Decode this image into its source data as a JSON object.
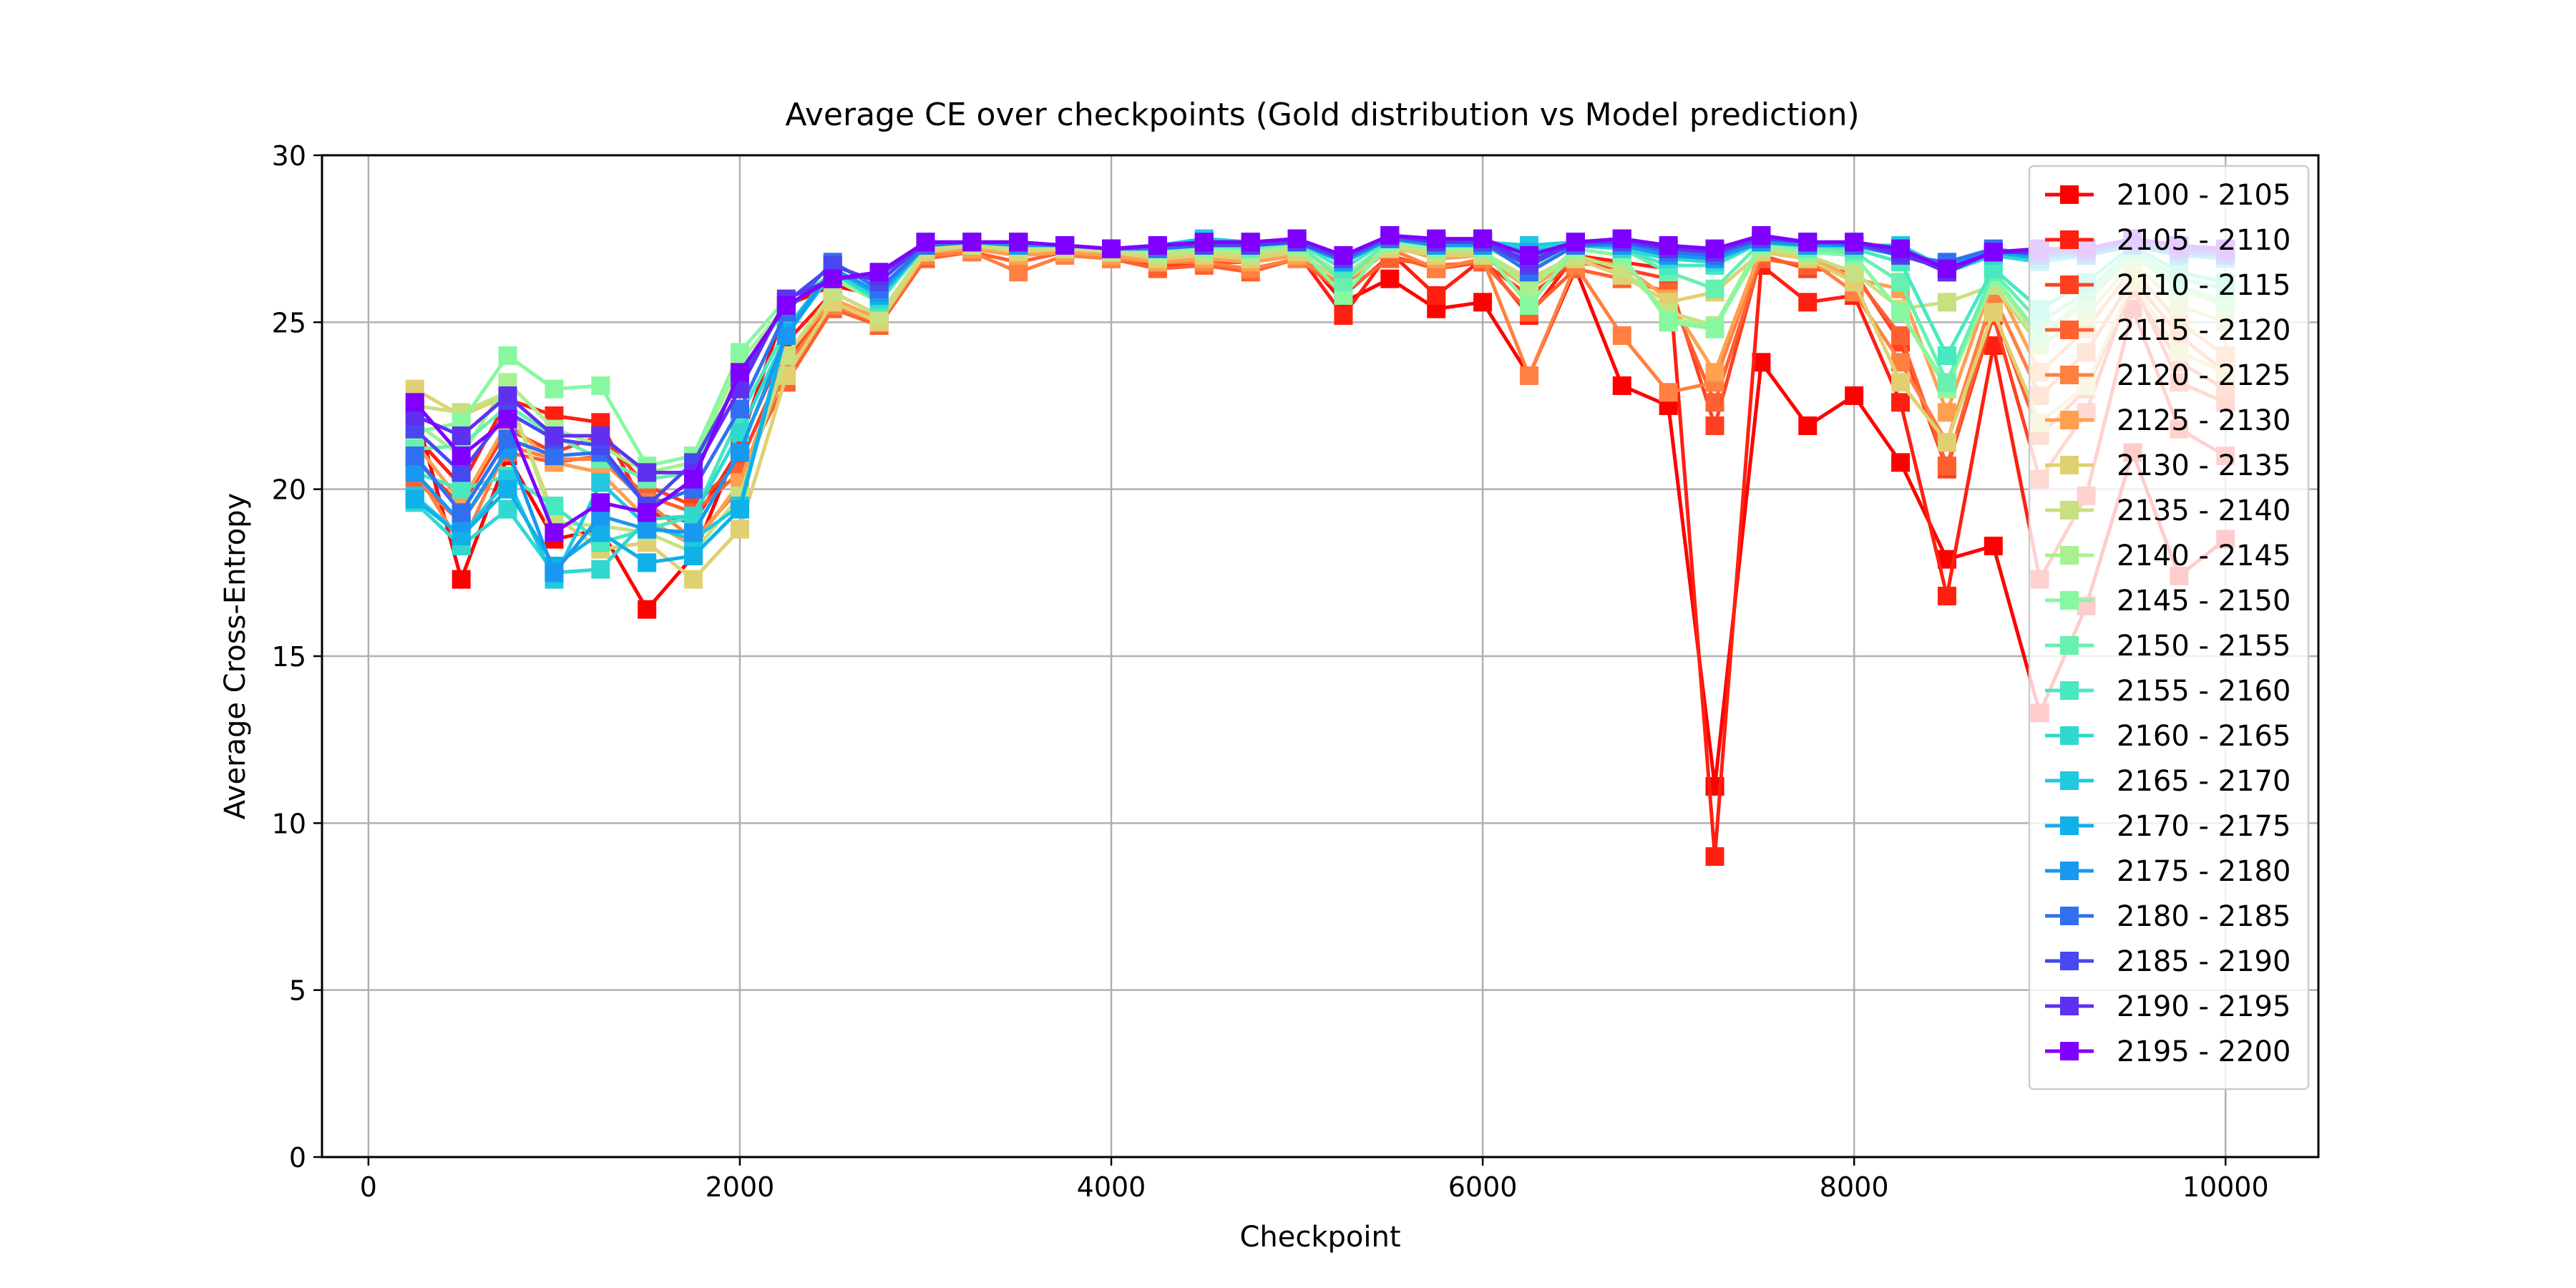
{
  "chart_data": {
    "type": "line",
    "title": "Average CE over checkpoints (Gold distribution vs Model prediction)",
    "xlabel": "Checkpoint",
    "ylabel": "Average Cross-Entropy",
    "xlim": [
      -250,
      10500
    ],
    "ylim": [
      0,
      30
    ],
    "xticks": [
      0,
      2000,
      4000,
      6000,
      8000,
      10000
    ],
    "yticks": [
      0,
      5,
      10,
      15,
      20,
      25,
      30
    ],
    "grid": true,
    "legend_position": "right",
    "marker": "square",
    "x": [
      250,
      500,
      750,
      1000,
      1250,
      1500,
      1750,
      2000,
      2250,
      2500,
      2750,
      3000,
      3250,
      3500,
      3750,
      4000,
      4250,
      4500,
      4750,
      5000,
      5250,
      5500,
      5750,
      6000,
      6250,
      6500,
      6750,
      7000,
      7250,
      7500,
      7750,
      8000,
      8250,
      8500,
      8750,
      9000,
      9250,
      9500,
      9750,
      10000
    ],
    "series": [
      {
        "name": "2100 - 2105",
        "color": "#ff0000",
        "values": [
          22.4,
          17.3,
          21.0,
          18.5,
          18.8,
          16.4,
          18.0,
          21.4,
          25.5,
          26.1,
          25.8,
          27.2,
          27.3,
          27.2,
          27.1,
          27.0,
          27.0,
          27.1,
          27.0,
          27.2,
          25.6,
          26.3,
          25.4,
          25.6,
          23.4,
          26.6,
          23.1,
          22.5,
          11.1,
          23.8,
          21.9,
          22.8,
          20.8,
          17.9,
          18.3,
          13.3,
          16.5,
          21.1,
          17.4,
          18.5
        ]
      },
      {
        "name": "2105 - 2110",
        "color": "#ff1f10",
        "values": [
          21.6,
          20.1,
          22.7,
          22.2,
          22.0,
          19.3,
          19.0,
          21.2,
          24.4,
          25.9,
          25.2,
          27.1,
          27.2,
          27.0,
          27.1,
          26.9,
          26.9,
          27.0,
          26.9,
          27.1,
          25.2,
          27.1,
          25.8,
          26.9,
          25.2,
          27.0,
          26.8,
          26.6,
          9.0,
          26.7,
          25.6,
          25.8,
          22.6,
          16.8,
          24.3,
          17.3,
          19.8,
          25.4,
          21.8,
          21.0
        ]
      },
      {
        "name": "2110 - 2115",
        "color": "#ff4020",
        "values": [
          20.9,
          19.5,
          21.8,
          21.1,
          21.6,
          20.1,
          19.5,
          20.8,
          23.9,
          25.6,
          25.0,
          27.0,
          27.2,
          27.0,
          27.2,
          27.0,
          26.7,
          26.8,
          26.8,
          27.0,
          25.8,
          27.0,
          26.6,
          26.8,
          25.8,
          26.8,
          26.6,
          26.3,
          21.9,
          27.0,
          26.6,
          26.5,
          24.4,
          20.6,
          25.2,
          20.3,
          22.3,
          26.2,
          23.2,
          22.6
        ]
      },
      {
        "name": "2115 - 2120",
        "color": "#ff6030",
        "values": [
          20.3,
          19.0,
          21.1,
          20.8,
          21.0,
          19.8,
          19.3,
          20.5,
          23.2,
          25.4,
          24.9,
          26.9,
          27.1,
          26.8,
          27.1,
          26.9,
          26.6,
          26.7,
          26.5,
          26.9,
          25.9,
          26.9,
          26.7,
          26.8,
          25.3,
          26.6,
          26.3,
          25.9,
          22.6,
          26.9,
          26.7,
          26.4,
          24.6,
          20.7,
          25.4,
          21.6,
          23.0,
          26.0,
          23.8,
          23.0
        ]
      },
      {
        "name": "2120 - 2125",
        "color": "#ff8040",
        "values": [
          20.6,
          18.3,
          21.3,
          20.9,
          20.9,
          19.6,
          18.5,
          20.0,
          23.7,
          25.5,
          25.0,
          27.0,
          27.1,
          26.5,
          27.0,
          26.9,
          26.8,
          26.8,
          26.6,
          26.9,
          26.1,
          27.2,
          26.6,
          26.9,
          23.4,
          26.7,
          24.6,
          22.9,
          23.2,
          27.1,
          26.9,
          25.9,
          23.8,
          21.4,
          25.8,
          22.8,
          24.1,
          26.3,
          24.6,
          23.5
        ]
      },
      {
        "name": "2125 - 2130",
        "color": "#ffa050",
        "values": [
          21.4,
          19.6,
          22.0,
          20.8,
          20.5,
          19.1,
          18.3,
          20.2,
          24.0,
          25.7,
          25.1,
          27.1,
          27.2,
          27.0,
          27.1,
          27.0,
          26.8,
          26.9,
          26.8,
          27.0,
          26.3,
          27.3,
          26.9,
          27.0,
          26.0,
          26.9,
          26.7,
          25.7,
          23.5,
          27.2,
          27.0,
          26.3,
          26.0,
          22.3,
          26.3,
          23.5,
          24.8,
          26.6,
          25.0,
          24.0
        ]
      },
      {
        "name": "2130 - 2135",
        "color": "#e0d070",
        "values": [
          23.0,
          22.2,
          22.8,
          19.2,
          18.2,
          18.4,
          17.3,
          18.8,
          23.4,
          25.6,
          25.0,
          27.1,
          27.3,
          27.1,
          27.2,
          27.1,
          26.9,
          27.0,
          26.9,
          27.1,
          26.2,
          27.2,
          27.0,
          27.0,
          26.2,
          26.9,
          26.4,
          25.6,
          25.9,
          27.1,
          26.9,
          26.2,
          23.2,
          21.4,
          25.3,
          22.0,
          23.1,
          26.2,
          24.1,
          23.5
        ]
      },
      {
        "name": "2135 - 2140",
        "color": "#c8e080",
        "values": [
          22.5,
          22.3,
          22.9,
          19.0,
          18.9,
          18.7,
          18.1,
          19.8,
          24.0,
          25.9,
          25.2,
          27.2,
          27.3,
          27.2,
          27.2,
          27.1,
          27.0,
          27.1,
          27.0,
          27.2,
          26.4,
          27.3,
          27.1,
          27.1,
          26.3,
          27.0,
          26.6,
          25.3,
          24.9,
          27.2,
          27.0,
          26.5,
          25.4,
          25.6,
          26.1,
          24.3,
          25.2,
          26.8,
          25.5,
          25.0
        ]
      },
      {
        "name": "2140 - 2145",
        "color": "#a8f090",
        "values": [
          22.0,
          21.0,
          23.2,
          21.8,
          21.3,
          20.5,
          20.8,
          23.8,
          25.5,
          26.3,
          25.6,
          27.3,
          27.4,
          27.3,
          27.3,
          27.2,
          27.1,
          27.2,
          27.1,
          27.3,
          26.4,
          27.4,
          27.2,
          27.2,
          26.0,
          27.2,
          27.0,
          25.1,
          24.9,
          27.4,
          27.2,
          27.0,
          25.3,
          23.0,
          26.3,
          24.5,
          25.6,
          27.0,
          26.0,
          25.5
        ]
      },
      {
        "name": "2145 - 2150",
        "color": "#88f8a0",
        "values": [
          21.7,
          22.0,
          24.0,
          23.0,
          23.1,
          20.7,
          21.0,
          24.1,
          25.7,
          26.4,
          25.6,
          27.3,
          27.4,
          27.3,
          27.3,
          27.2,
          27.2,
          27.2,
          27.2,
          27.3,
          25.8,
          27.4,
          27.2,
          27.2,
          25.5,
          27.2,
          27.0,
          25.0,
          24.8,
          27.3,
          27.1,
          27.0,
          25.3,
          23.1,
          26.4,
          24.6,
          25.7,
          27.1,
          26.1,
          25.6
        ]
      },
      {
        "name": "2150 - 2155",
        "color": "#68f0b0",
        "values": [
          21.2,
          21.3,
          22.5,
          21.6,
          20.9,
          20.3,
          20.5,
          23.5,
          25.4,
          26.5,
          25.7,
          27.3,
          27.4,
          27.3,
          27.3,
          27.2,
          27.2,
          27.3,
          27.2,
          27.4,
          26.2,
          27.5,
          27.3,
          27.3,
          26.6,
          27.3,
          27.2,
          26.5,
          26.0,
          27.4,
          27.2,
          27.1,
          26.2,
          23.2,
          26.5,
          25.0,
          25.9,
          27.2,
          26.3,
          26.0
        ]
      },
      {
        "name": "2155 - 2160",
        "color": "#48e8c0",
        "values": [
          20.5,
          20.0,
          20.4,
          19.5,
          18.4,
          18.8,
          19.2,
          22.2,
          24.8,
          26.5,
          25.6,
          27.3,
          27.4,
          27.3,
          27.3,
          27.2,
          27.2,
          27.4,
          27.3,
          27.4,
          26.6,
          27.5,
          27.3,
          27.3,
          27.0,
          27.3,
          27.2,
          26.7,
          26.7,
          27.4,
          27.3,
          27.2,
          26.8,
          24.0,
          26.6,
          25.4,
          26.2,
          27.3,
          26.5,
          26.2
        ]
      },
      {
        "name": "2160 - 2165",
        "color": "#30d8d0",
        "values": [
          19.6,
          18.3,
          19.4,
          17.5,
          17.6,
          19.1,
          19.2,
          21.7,
          24.6,
          26.5,
          25.7,
          27.3,
          27.4,
          27.3,
          27.3,
          27.2,
          27.3,
          27.5,
          27.4,
          27.4,
          26.8,
          27.5,
          27.3,
          27.4,
          27.2,
          27.3,
          27.2,
          26.9,
          26.8,
          27.4,
          27.3,
          27.3,
          27.2,
          26.5,
          27.0,
          26.8,
          27.0,
          27.3,
          27.0,
          26.9
        ]
      },
      {
        "name": "2165 - 2170",
        "color": "#20c8e0",
        "values": [
          19.8,
          18.6,
          20.3,
          17.3,
          20.2,
          18.9,
          18.5,
          19.5,
          24.8,
          26.6,
          25.8,
          27.3,
          27.4,
          27.3,
          27.3,
          27.2,
          27.3,
          27.5,
          27.4,
          27.4,
          26.8,
          27.5,
          27.4,
          27.4,
          27.3,
          27.4,
          27.3,
          27.0,
          26.9,
          27.4,
          27.3,
          27.3,
          27.3,
          26.6,
          27.1,
          26.9,
          27.0,
          27.3,
          27.1,
          27.0
        ]
      },
      {
        "name": "2170 - 2175",
        "color": "#10b0e8",
        "values": [
          19.7,
          18.6,
          20.0,
          17.7,
          18.7,
          17.8,
          18.0,
          19.4,
          24.7,
          26.6,
          25.8,
          27.3,
          27.4,
          27.3,
          27.3,
          27.2,
          27.3,
          27.4,
          27.3,
          27.4,
          26.8,
          27.5,
          27.3,
          27.4,
          27.1,
          27.3,
          27.3,
          27.0,
          26.9,
          27.4,
          27.3,
          27.3,
          27.2,
          26.6,
          27.1,
          26.9,
          27.0,
          27.3,
          27.0,
          27.0
        ]
      },
      {
        "name": "2175 - 2180",
        "color": "#1898f0",
        "values": [
          20.5,
          19.0,
          21.2,
          17.5,
          19.2,
          18.8,
          18.7,
          21.1,
          24.6,
          26.6,
          25.9,
          27.3,
          27.4,
          27.3,
          27.3,
          27.2,
          27.2,
          27.3,
          27.3,
          27.4,
          26.8,
          27.5,
          27.3,
          27.3,
          26.9,
          27.3,
          27.3,
          27.0,
          26.9,
          27.4,
          27.3,
          27.3,
          27.1,
          26.7,
          27.1,
          27.0,
          27.0,
          27.3,
          27.1,
          27.0
        ]
      },
      {
        "name": "2180 - 2185",
        "color": "#3070f0",
        "values": [
          21.0,
          19.3,
          21.5,
          21.0,
          21.1,
          19.5,
          20.0,
          22.4,
          25.3,
          26.8,
          26.0,
          27.3,
          27.4,
          27.4,
          27.3,
          27.2,
          27.2,
          27.3,
          27.3,
          27.4,
          26.9,
          27.5,
          27.4,
          27.4,
          26.5,
          27.3,
          27.4,
          27.1,
          27.0,
          27.5,
          27.4,
          27.3,
          27.0,
          26.8,
          27.2,
          27.0,
          27.1,
          27.4,
          27.1,
          27.0
        ]
      },
      {
        "name": "2185 - 2190",
        "color": "#4848f0",
        "values": [
          21.8,
          20.5,
          22.3,
          21.5,
          21.3,
          19.5,
          20.8,
          23.3,
          25.6,
          26.7,
          26.2,
          27.4,
          27.4,
          27.4,
          27.3,
          27.2,
          27.3,
          27.3,
          27.3,
          27.4,
          26.9,
          27.6,
          27.4,
          27.4,
          26.7,
          27.4,
          27.4,
          27.2,
          27.1,
          27.5,
          27.4,
          27.4,
          27.0,
          26.6,
          27.1,
          27.1,
          27.1,
          27.4,
          27.2,
          27.1
        ]
      },
      {
        "name": "2190 - 2195",
        "color": "#6030f0",
        "values": [
          22.2,
          21.6,
          22.8,
          21.6,
          21.6,
          20.5,
          20.5,
          23.0,
          25.7,
          26.3,
          26.4,
          27.4,
          27.4,
          27.4,
          27.3,
          27.2,
          27.3,
          27.4,
          27.4,
          27.5,
          27.0,
          27.6,
          27.4,
          27.5,
          26.8,
          27.4,
          27.5,
          27.2,
          27.1,
          27.6,
          27.4,
          27.4,
          27.1,
          26.5,
          27.1,
          27.1,
          27.2,
          27.5,
          27.2,
          27.1
        ]
      },
      {
        "name": "2195 - 2200",
        "color": "#8000ff",
        "values": [
          22.6,
          21.0,
          22.1,
          18.7,
          19.6,
          19.3,
          20.3,
          23.5,
          25.5,
          26.3,
          26.5,
          27.4,
          27.4,
          27.4,
          27.3,
          27.2,
          27.3,
          27.4,
          27.4,
          27.5,
          27.0,
          27.6,
          27.5,
          27.5,
          27.0,
          27.4,
          27.5,
          27.3,
          27.2,
          27.6,
          27.4,
          27.4,
          27.2,
          26.6,
          27.1,
          27.2,
          27.2,
          27.5,
          27.3,
          27.2
        ]
      }
    ]
  }
}
